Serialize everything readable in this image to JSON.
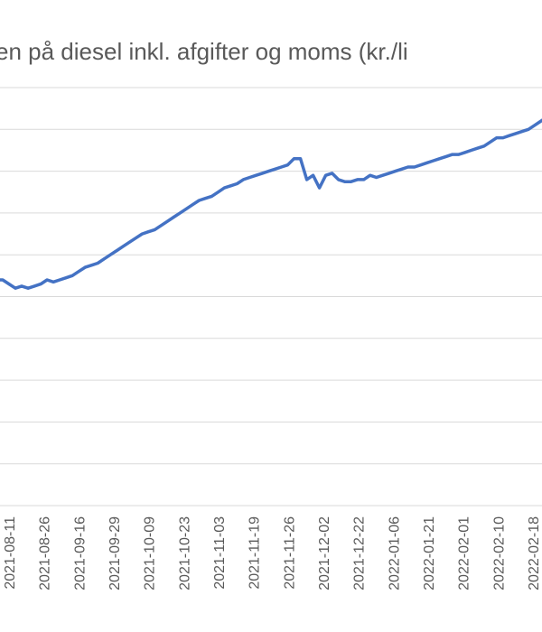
{
  "chart_data": {
    "type": "line",
    "title": "Prisen på diesel inkl. afgifter og moms  (kr./liter)",
    "title_visible": "sen på diesel inkl. afgifter og moms  (kr./li",
    "xlabel": "",
    "ylabel": "",
    "grid": true,
    "series_color": "#4472c4",
    "ylim": [
      0,
      10
    ],
    "x_tick_labels": [
      "2021-08-11",
      "2021-08-26",
      "2021-09-16",
      "2021-09-29",
      "2021-10-09",
      "2021-10-23",
      "2021-11-03",
      "2021-11-19",
      "2021-11-26",
      "2021-12-02",
      "2021-12-22",
      "2022-01-06",
      "2022-01-21",
      "2022-02-01",
      "2022-02-10",
      "2022-02-18"
    ],
    "series": [
      {
        "values": [
          5.4,
          5.4,
          5.3,
          5.2,
          5.25,
          5.2,
          5.25,
          5.3,
          5.4,
          5.35,
          5.4,
          5.45,
          5.5,
          5.6,
          5.7,
          5.75,
          5.8,
          5.9,
          6.0,
          6.1,
          6.2,
          6.3,
          6.4,
          6.5,
          6.55,
          6.6,
          6.7,
          6.8,
          6.9,
          7.0,
          7.1,
          7.2,
          7.3,
          7.35,
          7.4,
          7.5,
          7.6,
          7.65,
          7.7,
          7.8,
          7.85,
          7.9,
          7.95,
          8.0,
          8.05,
          8.1,
          8.15,
          8.3,
          8.3,
          7.8,
          7.9,
          7.6,
          7.9,
          7.95,
          7.8,
          7.75,
          7.75,
          7.8,
          7.8,
          7.9,
          7.85,
          7.9,
          7.95,
          8.0,
          8.05,
          8.1,
          8.1,
          8.15,
          8.2,
          8.25,
          8.3,
          8.35,
          8.4,
          8.4,
          8.45,
          8.5,
          8.55,
          8.6,
          8.7,
          8.8,
          8.8,
          8.85,
          8.9,
          8.95,
          9.0,
          9.1,
          9.2,
          9.3
        ]
      }
    ]
  }
}
